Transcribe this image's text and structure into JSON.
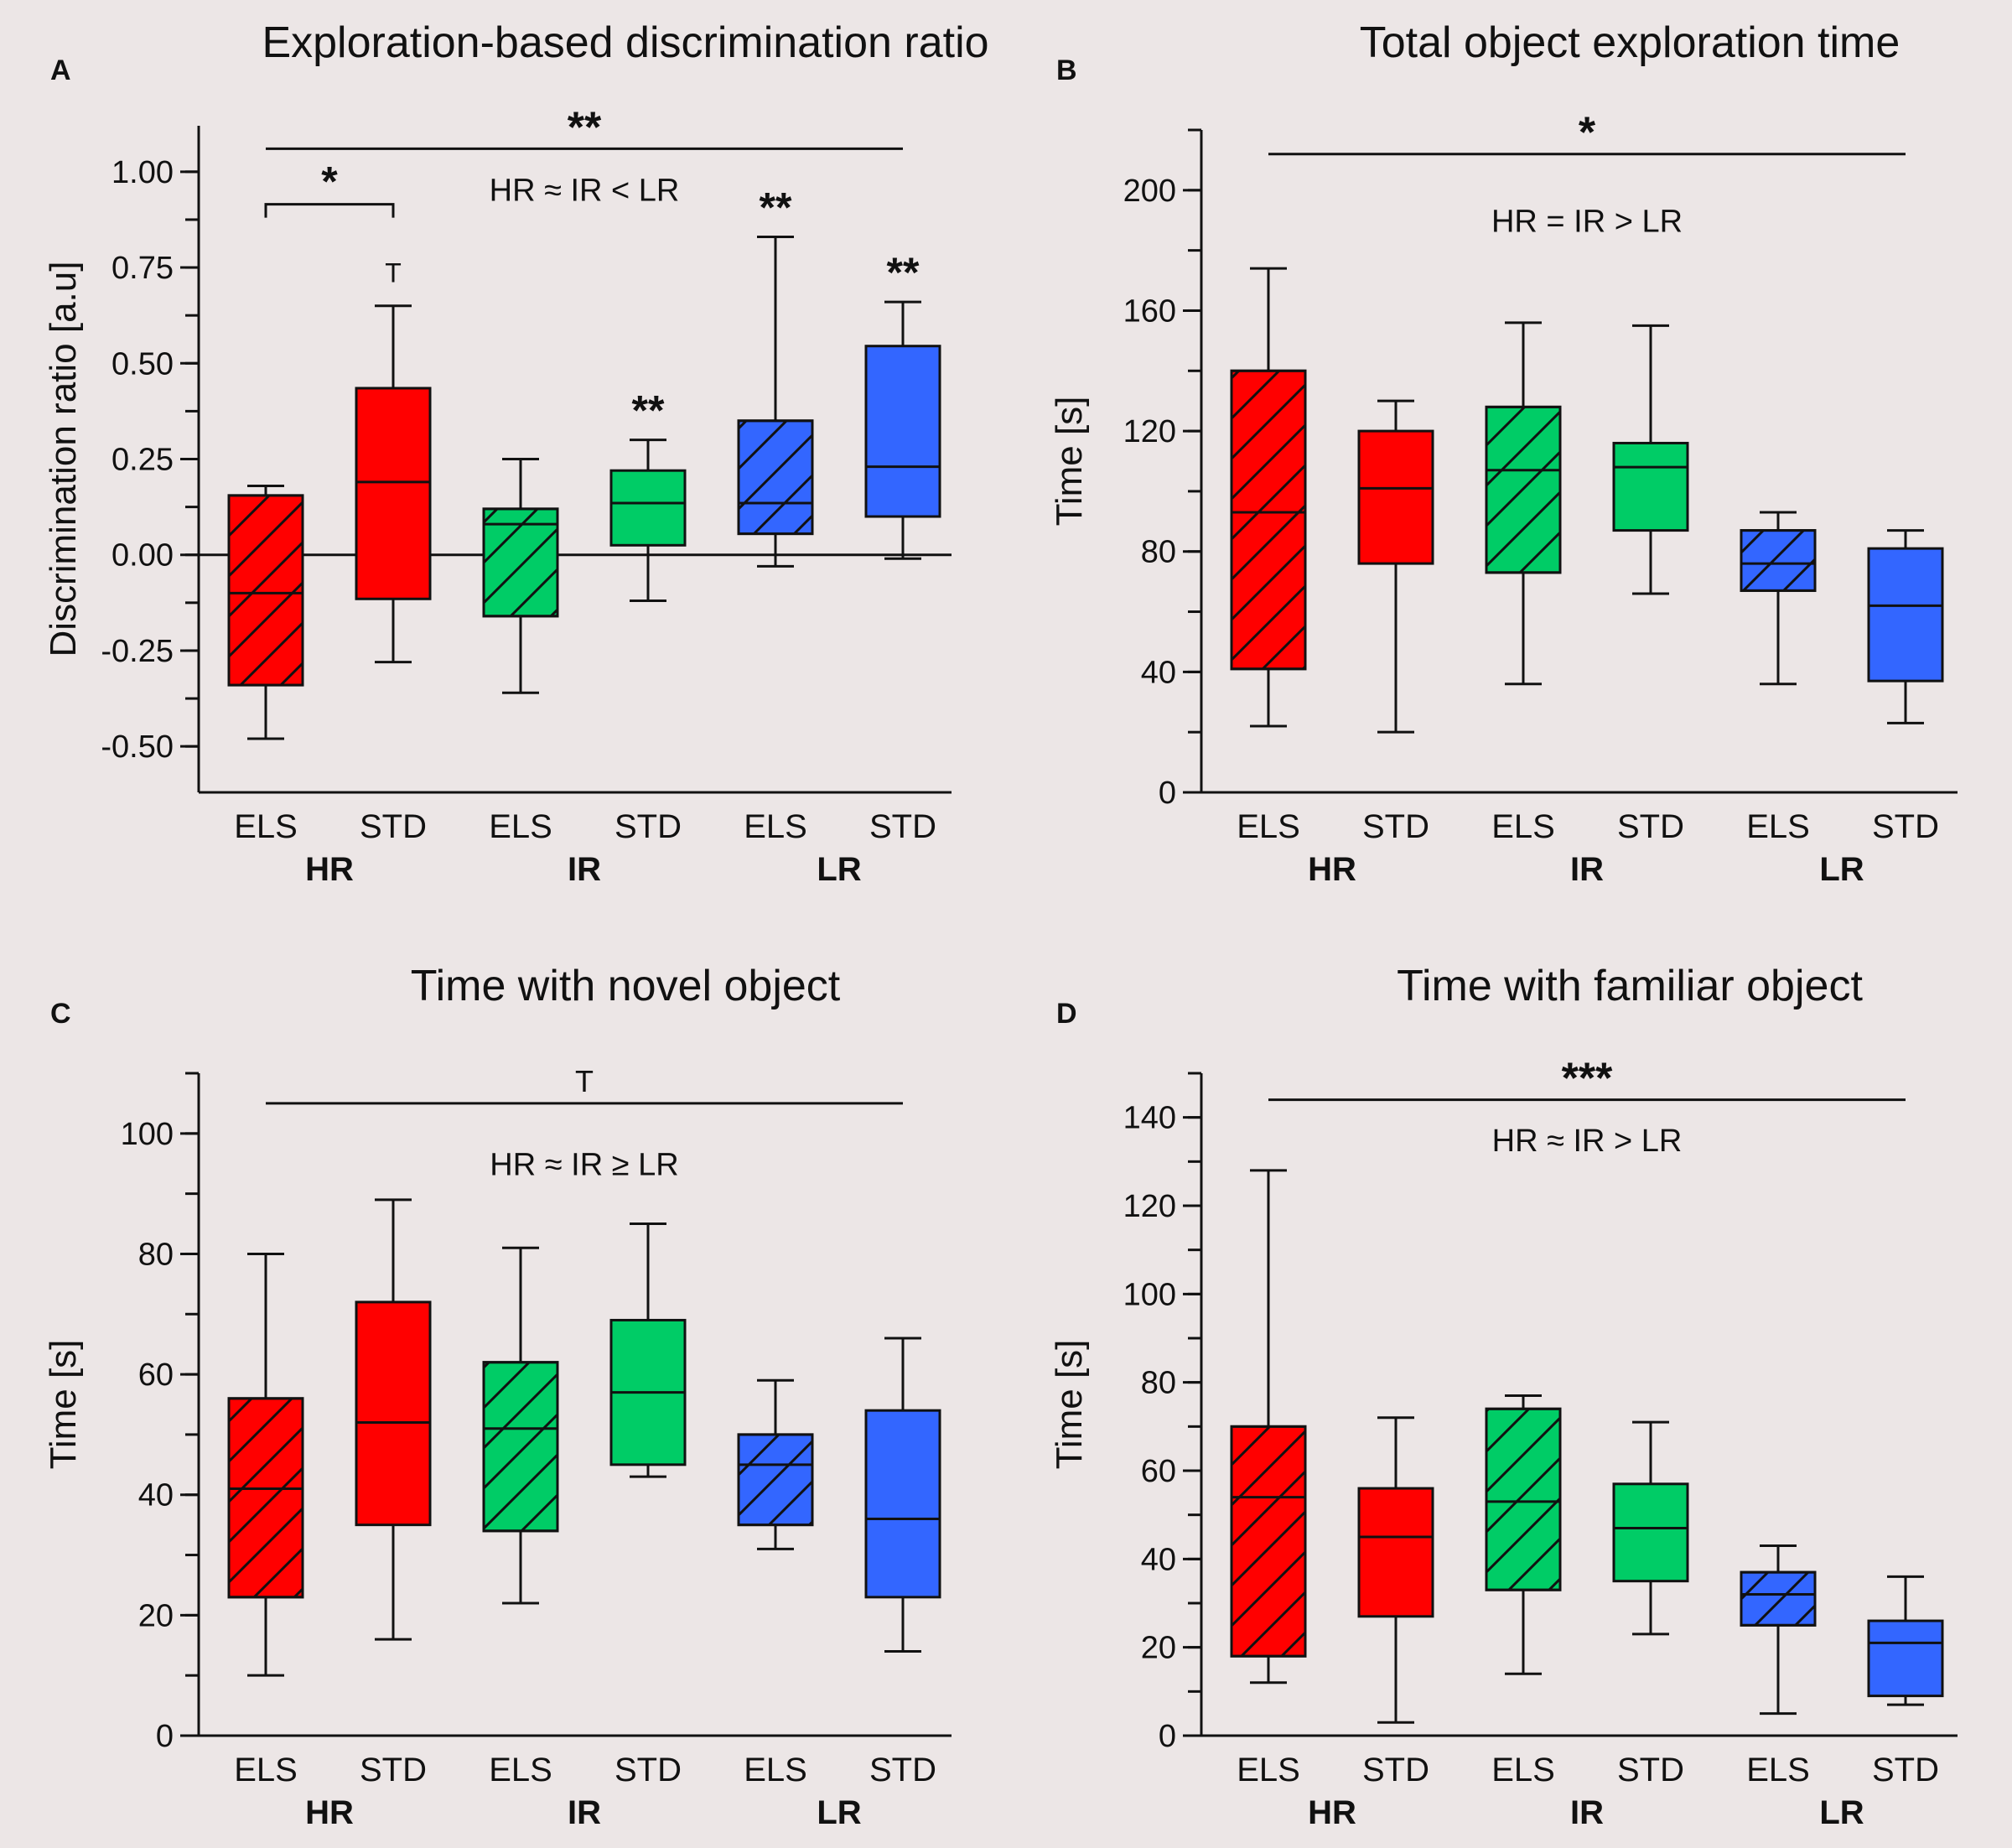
{
  "figure": {
    "background": "#ece6e6",
    "colors": {
      "HR": "#ff0000",
      "IR": "#00cc66",
      "LR": "#3366ff"
    }
  },
  "chart_data": [
    {
      "type": "box",
      "panel_label": "A",
      "title": "Exploration-based discrimination ratio",
      "ylabel": "Discrimination ratio [a.u]",
      "ylim": [
        -0.62,
        1.12
      ],
      "yticks": [
        -0.5,
        -0.25,
        0,
        0.25,
        0.5,
        0.75,
        1
      ],
      "ytick_labels": [
        "-0.50",
        "-0.25",
        "0.00",
        "0.25",
        "0.50",
        "0.75",
        "1.00"
      ],
      "zero_line": true,
      "condition_labels": [
        "ELS",
        "STD",
        "ELS",
        "STD",
        "ELS",
        "STD"
      ],
      "group_labels": [
        "HR",
        "IR",
        "LR"
      ],
      "boxes": [
        {
          "group": "HR",
          "condition": "ELS",
          "hatched": true,
          "min": -0.48,
          "q1": -0.34,
          "median": -0.1,
          "q3": 0.155,
          "max": 0.18,
          "star": ""
        },
        {
          "group": "HR",
          "condition": "STD",
          "hatched": false,
          "min": -0.28,
          "q1": -0.115,
          "median": 0.19,
          "q3": 0.435,
          "max": 0.65,
          "star": "T"
        },
        {
          "group": "IR",
          "condition": "ELS",
          "hatched": true,
          "min": -0.36,
          "q1": -0.16,
          "median": 0.08,
          "q3": 0.12,
          "max": 0.25,
          "star": ""
        },
        {
          "group": "IR",
          "condition": "STD",
          "hatched": false,
          "min": -0.12,
          "q1": 0.025,
          "median": 0.135,
          "q3": 0.22,
          "max": 0.3,
          "star": "**"
        },
        {
          "group": "LR",
          "condition": "ELS",
          "hatched": true,
          "min": -0.03,
          "q1": 0.055,
          "median": 0.135,
          "q3": 0.35,
          "max": 0.83,
          "star": "**"
        },
        {
          "group": "LR",
          "condition": "STD",
          "hatched": false,
          "min": -0.01,
          "q1": 0.1,
          "median": 0.23,
          "q3": 0.545,
          "max": 0.66,
          "star": "**"
        }
      ],
      "brackets": [
        {
          "from": 0,
          "to": 1,
          "label": "*",
          "level": 0.915
        }
      ],
      "overall": {
        "from": 0,
        "to": 5,
        "level": 1.06,
        "stars": "**",
        "comparison": "HR ≈ IR < LR",
        "comparison_level": 0.955
      }
    },
    {
      "type": "box",
      "panel_label": "B",
      "title": "Total object exploration time",
      "ylabel": "Time [s]",
      "ylim": [
        0,
        220
      ],
      "yticks": [
        0,
        40,
        80,
        120,
        160,
        200
      ],
      "ytick_labels": [
        "0",
        "40",
        "80",
        "120",
        "160",
        "200"
      ],
      "zero_line": false,
      "condition_labels": [
        "ELS",
        "STD",
        "ELS",
        "STD",
        "ELS",
        "STD"
      ],
      "group_labels": [
        "HR",
        "IR",
        "LR"
      ],
      "boxes": [
        {
          "group": "HR",
          "condition": "ELS",
          "hatched": true,
          "min": 22,
          "q1": 41,
          "median": 93,
          "q3": 140,
          "max": 174,
          "star": ""
        },
        {
          "group": "HR",
          "condition": "STD",
          "hatched": false,
          "min": 20,
          "q1": 76,
          "median": 101,
          "q3": 120,
          "max": 130,
          "star": ""
        },
        {
          "group": "IR",
          "condition": "ELS",
          "hatched": true,
          "min": 36,
          "q1": 73,
          "median": 107,
          "q3": 128,
          "max": 156,
          "star": ""
        },
        {
          "group": "IR",
          "condition": "STD",
          "hatched": false,
          "min": 66,
          "q1": 87,
          "median": 108,
          "q3": 116,
          "max": 155,
          "star": ""
        },
        {
          "group": "LR",
          "condition": "ELS",
          "hatched": true,
          "min": 36,
          "q1": 67,
          "median": 76,
          "q3": 87,
          "max": 93,
          "star": ""
        },
        {
          "group": "LR",
          "condition": "STD",
          "hatched": false,
          "min": 23,
          "q1": 37,
          "median": 62,
          "q3": 81,
          "max": 87,
          "star": ""
        }
      ],
      "brackets": [],
      "overall": {
        "from": 0,
        "to": 5,
        "level": 212,
        "stars": "*",
        "comparison": "HR = IR > LR",
        "comparison_level": 190
      }
    },
    {
      "type": "box",
      "panel_label": "C",
      "title": "Time with novel object",
      "ylabel": "Time [s]",
      "ylim": [
        0,
        110
      ],
      "yticks": [
        0,
        20,
        40,
        60,
        80,
        100
      ],
      "ytick_labels": [
        "0",
        "20",
        "40",
        "60",
        "80",
        "100"
      ],
      "zero_line": false,
      "condition_labels": [
        "ELS",
        "STD",
        "ELS",
        "STD",
        "ELS",
        "STD"
      ],
      "group_labels": [
        "HR",
        "IR",
        "LR"
      ],
      "boxes": [
        {
          "group": "HR",
          "condition": "ELS",
          "hatched": true,
          "min": 10,
          "q1": 23,
          "median": 41,
          "q3": 56,
          "max": 80,
          "star": ""
        },
        {
          "group": "HR",
          "condition": "STD",
          "hatched": false,
          "min": 16,
          "q1": 35,
          "median": 52,
          "q3": 72,
          "max": 89,
          "star": ""
        },
        {
          "group": "IR",
          "condition": "ELS",
          "hatched": true,
          "min": 22,
          "q1": 34,
          "median": 51,
          "q3": 62,
          "max": 81,
          "star": ""
        },
        {
          "group": "IR",
          "condition": "STD",
          "hatched": false,
          "min": 43,
          "q1": 45,
          "median": 57,
          "q3": 69,
          "max": 85,
          "star": ""
        },
        {
          "group": "LR",
          "condition": "ELS",
          "hatched": true,
          "min": 31,
          "q1": 35,
          "median": 45,
          "q3": 50,
          "max": 59,
          "star": ""
        },
        {
          "group": "LR",
          "condition": "STD",
          "hatched": false,
          "min": 14,
          "q1": 23,
          "median": 36,
          "q3": 54,
          "max": 66,
          "star": ""
        }
      ],
      "brackets": [],
      "overall": {
        "from": 0,
        "to": 5,
        "level": 105,
        "stars": "T",
        "comparison": "HR ≈ IR ≥ LR",
        "comparison_level": 95
      }
    },
    {
      "type": "box",
      "panel_label": "D",
      "title": "Time with familiar object",
      "ylabel": "Time [s]",
      "ylim": [
        0,
        150
      ],
      "yticks": [
        0,
        20,
        40,
        60,
        80,
        100,
        120,
        140
      ],
      "ytick_labels": [
        "0",
        "20",
        "40",
        "60",
        "80",
        "100",
        "120",
        "140"
      ],
      "zero_line": false,
      "condition_labels": [
        "ELS",
        "STD",
        "ELS",
        "STD",
        "ELS",
        "STD"
      ],
      "group_labels": [
        "HR",
        "IR",
        "LR"
      ],
      "boxes": [
        {
          "group": "HR",
          "condition": "ELS",
          "hatched": true,
          "min": 12,
          "q1": 18,
          "median": 54,
          "q3": 70,
          "max": 128,
          "star": ""
        },
        {
          "group": "HR",
          "condition": "STD",
          "hatched": false,
          "min": 3,
          "q1": 27,
          "median": 45,
          "q3": 56,
          "max": 72,
          "star": ""
        },
        {
          "group": "IR",
          "condition": "ELS",
          "hatched": true,
          "min": 14,
          "q1": 33,
          "median": 53,
          "q3": 74,
          "max": 77,
          "star": ""
        },
        {
          "group": "IR",
          "condition": "STD",
          "hatched": false,
          "min": 23,
          "q1": 35,
          "median": 47,
          "q3": 57,
          "max": 71,
          "star": ""
        },
        {
          "group": "LR",
          "condition": "ELS",
          "hatched": true,
          "min": 5,
          "q1": 25,
          "median": 32,
          "q3": 37,
          "max": 43,
          "star": ""
        },
        {
          "group": "LR",
          "condition": "STD",
          "hatched": false,
          "min": 7,
          "q1": 9,
          "median": 21,
          "q3": 26,
          "max": 36,
          "star": ""
        }
      ],
      "brackets": [],
      "overall": {
        "from": 0,
        "to": 5,
        "level": 144,
        "stars": "***",
        "comparison": "HR ≈ IR > LR",
        "comparison_level": 135
      }
    }
  ]
}
